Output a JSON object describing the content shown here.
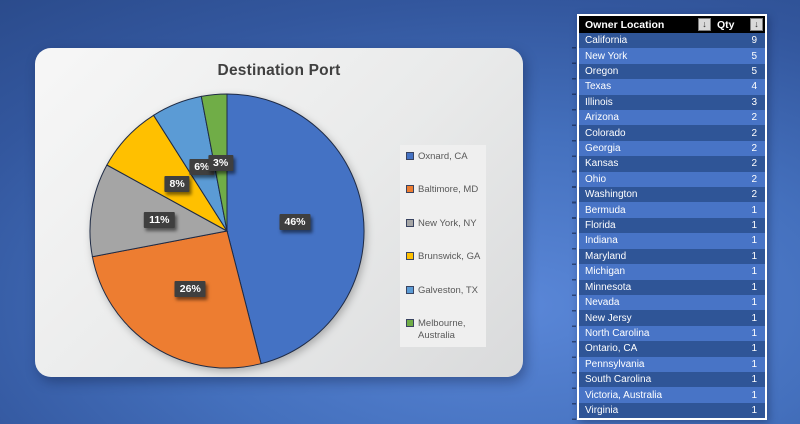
{
  "chart_data": {
    "type": "pie",
    "title": "Destination Port",
    "labels": [
      "Oxnard, CA",
      "Baltimore, MD",
      "New York, NY",
      "Brunswick, GA",
      "Galveston, TX",
      "Melbourne, Australia"
    ],
    "values": [
      46,
      26,
      11,
      8,
      6,
      3
    ],
    "value_labels": [
      "46%",
      "26%",
      "11%",
      "8%",
      "6%",
      "3%"
    ],
    "colors": [
      "#4472C4",
      "#ED7D31",
      "#A5A5A5",
      "#FFC000",
      "#5B9BD5",
      "#70AD47"
    ],
    "legend_position": "right",
    "start_angle_deg": 0,
    "direction": "clockwise",
    "data_label_style": "dark-box-white-text"
  },
  "table": {
    "columns": [
      {
        "label": "Owner Location",
        "sort_icon": "sort-descending-icon",
        "glyph": "↓"
      },
      {
        "label": "Qty",
        "sort_icon": "sort-descending-icon",
        "glyph": "↓"
      }
    ],
    "rows": [
      [
        "California",
        9
      ],
      [
        "New York",
        5
      ],
      [
        "Oregon",
        5
      ],
      [
        "Texas",
        4
      ],
      [
        "Illinois",
        3
      ],
      [
        "Arizona",
        2
      ],
      [
        "Colorado",
        2
      ],
      [
        "Georgia",
        2
      ],
      [
        "Kansas",
        2
      ],
      [
        "Ohio",
        2
      ],
      [
        "Washington",
        2
      ],
      [
        "Bermuda",
        1
      ],
      [
        "Florida",
        1
      ],
      [
        "Indiana",
        1
      ],
      [
        "Maryland",
        1
      ],
      [
        "Michigan",
        1
      ],
      [
        "Minnesota",
        1
      ],
      [
        "Nevada",
        1
      ],
      [
        "New Jersy",
        1
      ],
      [
        "North Carolina",
        1
      ],
      [
        "Ontario, CA",
        1
      ],
      [
        "Pennsylvania",
        1
      ],
      [
        "South Carolina",
        1
      ],
      [
        "Victoria, Australia",
        1
      ],
      [
        "Virginia",
        1
      ]
    ]
  },
  "colors_ui": {
    "slide_bg_dark": "#24417C",
    "slide_bg_light": "#5A87D8",
    "card_bg": "#EDEDED",
    "header_bg": "#000000",
    "row_dark": "#2F5597",
    "row_light": "#4874C6",
    "label_box": "#3F3F3F",
    "pie_stroke": "#1F2B45",
    "title_color": "#404040"
  }
}
